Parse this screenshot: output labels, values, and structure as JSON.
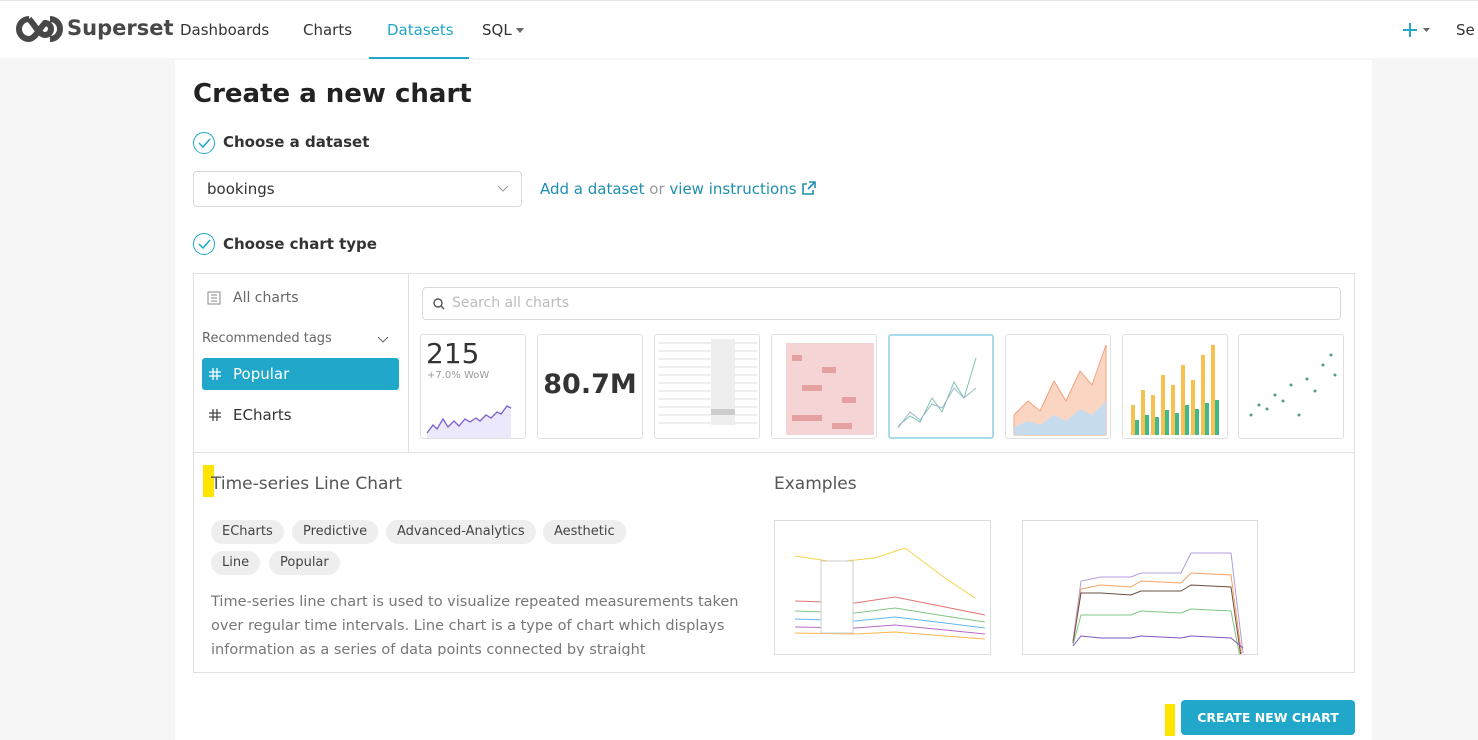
{
  "header": {
    "brand": "Superset",
    "nav": [
      "Dashboards",
      "Charts",
      "Datasets",
      "SQL"
    ],
    "right_menu": "Se"
  },
  "page": {
    "title": "Create a new chart",
    "step1": "Choose a dataset",
    "dataset": "bookings",
    "add_dataset": "Add a dataset",
    "or": "or",
    "view_instructions": "view instructions",
    "step2": "Choose chart type"
  },
  "chart_picker": {
    "all_charts": "All charts",
    "recommended_tags": "Recommended tags",
    "tags": [
      "Popular",
      "ECharts"
    ],
    "search_placeholder": "Search all charts",
    "thumbnails": {
      "big_number": "215",
      "big_number_sub": "+7.0% WoW",
      "big_number_total": "80.7M"
    }
  },
  "details": {
    "title": "Time-series Line Chart",
    "tags": [
      "ECharts",
      "Predictive",
      "Advanced-Analytics",
      "Aesthetic",
      "Line",
      "Popular"
    ],
    "description": "Time-series line chart is used to visualize repeated measurements taken over regular time intervals. Line chart is a type of chart which displays information as a series of data points connected by straight",
    "examples_title": "Examples"
  },
  "footer": {
    "button": "CREATE NEW CHART"
  }
}
